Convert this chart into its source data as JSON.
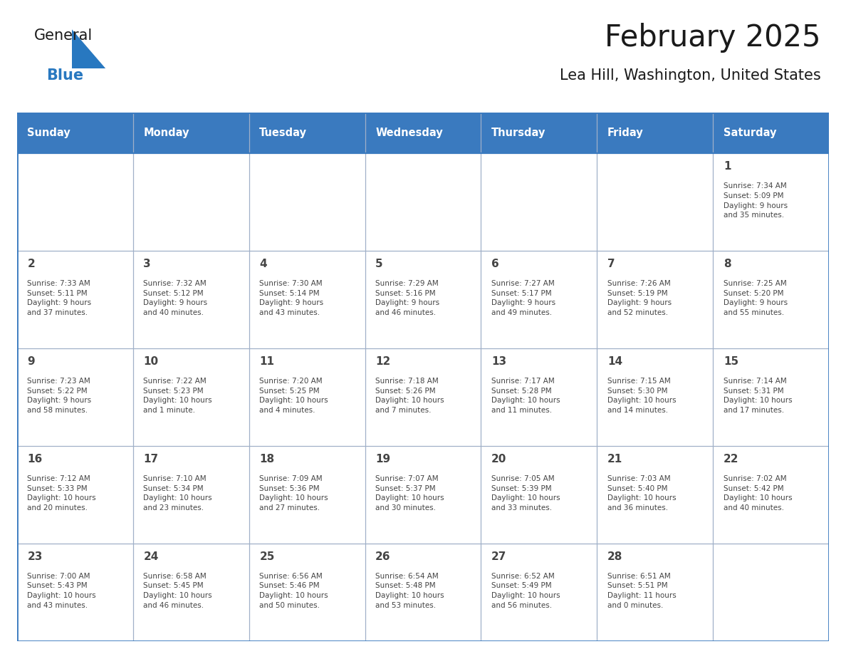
{
  "title": "February 2025",
  "subtitle": "Lea Hill, Washington, United States",
  "header_color": "#3a7abf",
  "header_text_color": "#ffffff",
  "border_color": "#3a7abf",
  "grid_line_color": "#a0b0c8",
  "text_color": "#444444",
  "days_of_week": [
    "Sunday",
    "Monday",
    "Tuesday",
    "Wednesday",
    "Thursday",
    "Friday",
    "Saturday"
  ],
  "weeks": [
    [
      {
        "day": null,
        "info": null
      },
      {
        "day": null,
        "info": null
      },
      {
        "day": null,
        "info": null
      },
      {
        "day": null,
        "info": null
      },
      {
        "day": null,
        "info": null
      },
      {
        "day": null,
        "info": null
      },
      {
        "day": 1,
        "info": "Sunrise: 7:34 AM\nSunset: 5:09 PM\nDaylight: 9 hours\nand 35 minutes."
      }
    ],
    [
      {
        "day": 2,
        "info": "Sunrise: 7:33 AM\nSunset: 5:11 PM\nDaylight: 9 hours\nand 37 minutes."
      },
      {
        "day": 3,
        "info": "Sunrise: 7:32 AM\nSunset: 5:12 PM\nDaylight: 9 hours\nand 40 minutes."
      },
      {
        "day": 4,
        "info": "Sunrise: 7:30 AM\nSunset: 5:14 PM\nDaylight: 9 hours\nand 43 minutes."
      },
      {
        "day": 5,
        "info": "Sunrise: 7:29 AM\nSunset: 5:16 PM\nDaylight: 9 hours\nand 46 minutes."
      },
      {
        "day": 6,
        "info": "Sunrise: 7:27 AM\nSunset: 5:17 PM\nDaylight: 9 hours\nand 49 minutes."
      },
      {
        "day": 7,
        "info": "Sunrise: 7:26 AM\nSunset: 5:19 PM\nDaylight: 9 hours\nand 52 minutes."
      },
      {
        "day": 8,
        "info": "Sunrise: 7:25 AM\nSunset: 5:20 PM\nDaylight: 9 hours\nand 55 minutes."
      }
    ],
    [
      {
        "day": 9,
        "info": "Sunrise: 7:23 AM\nSunset: 5:22 PM\nDaylight: 9 hours\nand 58 minutes."
      },
      {
        "day": 10,
        "info": "Sunrise: 7:22 AM\nSunset: 5:23 PM\nDaylight: 10 hours\nand 1 minute."
      },
      {
        "day": 11,
        "info": "Sunrise: 7:20 AM\nSunset: 5:25 PM\nDaylight: 10 hours\nand 4 minutes."
      },
      {
        "day": 12,
        "info": "Sunrise: 7:18 AM\nSunset: 5:26 PM\nDaylight: 10 hours\nand 7 minutes."
      },
      {
        "day": 13,
        "info": "Sunrise: 7:17 AM\nSunset: 5:28 PM\nDaylight: 10 hours\nand 11 minutes."
      },
      {
        "day": 14,
        "info": "Sunrise: 7:15 AM\nSunset: 5:30 PM\nDaylight: 10 hours\nand 14 minutes."
      },
      {
        "day": 15,
        "info": "Sunrise: 7:14 AM\nSunset: 5:31 PM\nDaylight: 10 hours\nand 17 minutes."
      }
    ],
    [
      {
        "day": 16,
        "info": "Sunrise: 7:12 AM\nSunset: 5:33 PM\nDaylight: 10 hours\nand 20 minutes."
      },
      {
        "day": 17,
        "info": "Sunrise: 7:10 AM\nSunset: 5:34 PM\nDaylight: 10 hours\nand 23 minutes."
      },
      {
        "day": 18,
        "info": "Sunrise: 7:09 AM\nSunset: 5:36 PM\nDaylight: 10 hours\nand 27 minutes."
      },
      {
        "day": 19,
        "info": "Sunrise: 7:07 AM\nSunset: 5:37 PM\nDaylight: 10 hours\nand 30 minutes."
      },
      {
        "day": 20,
        "info": "Sunrise: 7:05 AM\nSunset: 5:39 PM\nDaylight: 10 hours\nand 33 minutes."
      },
      {
        "day": 21,
        "info": "Sunrise: 7:03 AM\nSunset: 5:40 PM\nDaylight: 10 hours\nand 36 minutes."
      },
      {
        "day": 22,
        "info": "Sunrise: 7:02 AM\nSunset: 5:42 PM\nDaylight: 10 hours\nand 40 minutes."
      }
    ],
    [
      {
        "day": 23,
        "info": "Sunrise: 7:00 AM\nSunset: 5:43 PM\nDaylight: 10 hours\nand 43 minutes."
      },
      {
        "day": 24,
        "info": "Sunrise: 6:58 AM\nSunset: 5:45 PM\nDaylight: 10 hours\nand 46 minutes."
      },
      {
        "day": 25,
        "info": "Sunrise: 6:56 AM\nSunset: 5:46 PM\nDaylight: 10 hours\nand 50 minutes."
      },
      {
        "day": 26,
        "info": "Sunrise: 6:54 AM\nSunset: 5:48 PM\nDaylight: 10 hours\nand 53 minutes."
      },
      {
        "day": 27,
        "info": "Sunrise: 6:52 AM\nSunset: 5:49 PM\nDaylight: 10 hours\nand 56 minutes."
      },
      {
        "day": 28,
        "info": "Sunrise: 6:51 AM\nSunset: 5:51 PM\nDaylight: 11 hours\nand 0 minutes."
      },
      {
        "day": null,
        "info": null
      }
    ]
  ]
}
